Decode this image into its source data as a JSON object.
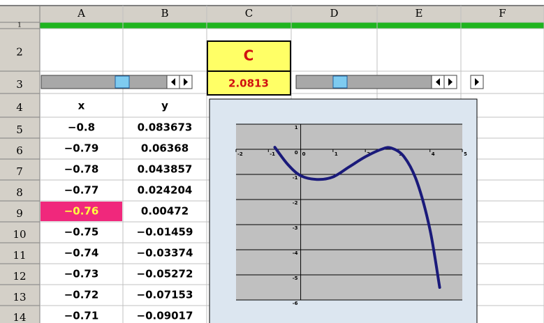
{
  "sheet": {
    "columns": [
      "A",
      "B",
      "C",
      "D",
      "E",
      "F"
    ],
    "rows": [
      "1",
      "2",
      "3",
      "4",
      "5",
      "6",
      "7",
      "8",
      "9",
      "10",
      "11",
      "12",
      "13",
      "14"
    ],
    "control_label": "C",
    "control_value": "2.0813",
    "headers": [
      "x",
      "y"
    ],
    "table": [
      [
        "−0.8",
        "0.083673"
      ],
      [
        "−0.79",
        "0.06368"
      ],
      [
        "−0.78",
        "0.043857"
      ],
      [
        "−0.77",
        "0.024204"
      ],
      [
        "−0.76",
        "0.00472"
      ],
      [
        "−0.75",
        "−0.01459"
      ],
      [
        "−0.74",
        "−0.03374"
      ],
      [
        "−0.73",
        "−0.05272"
      ],
      [
        "−0.72",
        "−0.07153"
      ],
      [
        "−0.71",
        "−0.09017"
      ]
    ]
  },
  "chart_data": {
    "type": "line",
    "color": "#1a1a7a",
    "x": [
      -0.8,
      -0.4,
      0,
      0.5,
      1,
      1.5,
      2,
      2.5,
      2.8,
      3.2,
      3.6,
      4,
      4.3
    ],
    "values": [
      0.08,
      -0.6,
      -1.05,
      -1.2,
      -1.1,
      -0.7,
      -0.3,
      0,
      0.05,
      -0.3,
      -1.3,
      -3.2,
      -5.5
    ],
    "xlim": [
      -2,
      5
    ],
    "xticks": [
      -2,
      -1,
      0,
      1,
      2,
      3,
      4,
      5
    ],
    "ylim": [
      -6,
      1
    ],
    "yticks": [
      1,
      0,
      -1,
      -2,
      -3,
      -4,
      -5,
      -6
    ],
    "grid": true
  }
}
